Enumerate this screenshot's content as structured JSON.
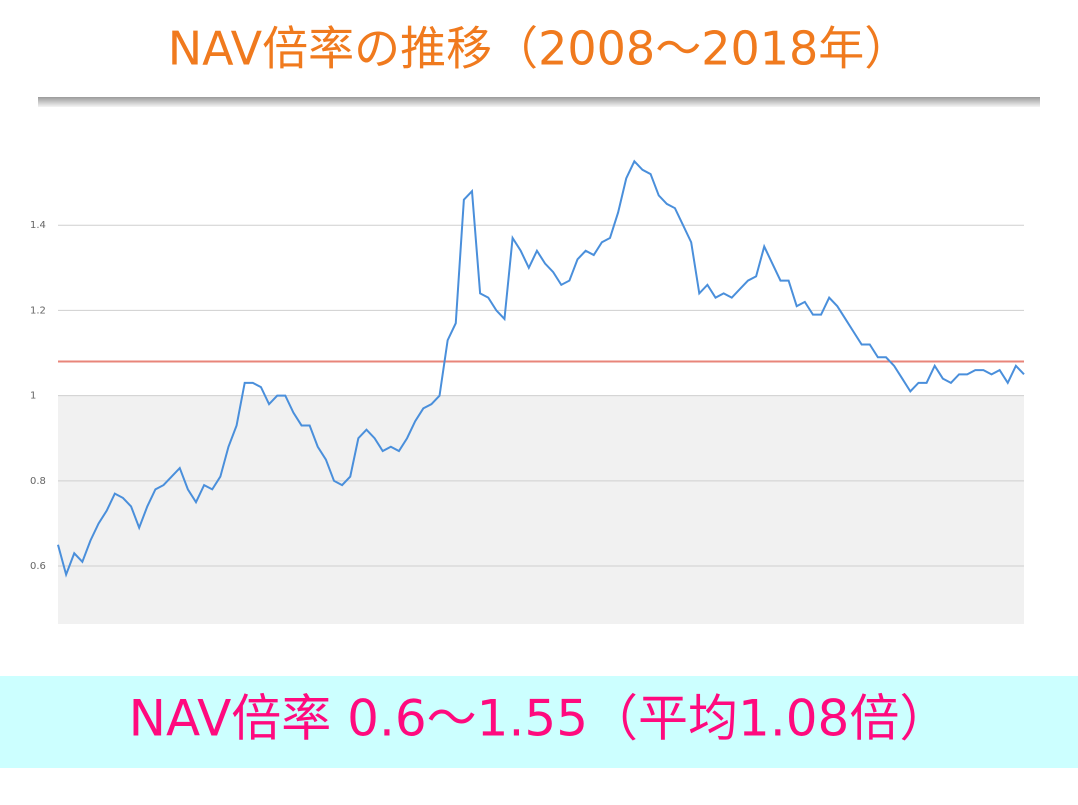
{
  "header": {
    "title": "NAV倍率の推移（2008〜2018年）"
  },
  "chart_data": {
    "type": "line",
    "series": [
      {
        "color": "#4a8fdb",
        "values": [
          0.65,
          0.58,
          0.63,
          0.61,
          0.66,
          0.7,
          0.73,
          0.77,
          0.76,
          0.74,
          0.69,
          0.74,
          0.78,
          0.79,
          0.81,
          0.83,
          0.78,
          0.75,
          0.79,
          0.78,
          0.81,
          0.88,
          0.93,
          1.03,
          1.03,
          1.02,
          0.98,
          1.0,
          1.0,
          0.96,
          0.93,
          0.93,
          0.88,
          0.85,
          0.8,
          0.79,
          0.81,
          0.9,
          0.92,
          0.9,
          0.87,
          0.88,
          0.87,
          0.9,
          0.94,
          0.97,
          0.98,
          1.0,
          1.13,
          1.17,
          1.46,
          1.48,
          1.24,
          1.23,
          1.2,
          1.18,
          1.37,
          1.34,
          1.3,
          1.34,
          1.31,
          1.29,
          1.26,
          1.27,
          1.32,
          1.34,
          1.33,
          1.36,
          1.37,
          1.43,
          1.51,
          1.55,
          1.53,
          1.52,
          1.47,
          1.45,
          1.44,
          1.4,
          1.36,
          1.24,
          1.26,
          1.23,
          1.24,
          1.23,
          1.25,
          1.27,
          1.28,
          1.35,
          1.31,
          1.27,
          1.27,
          1.21,
          1.22,
          1.19,
          1.19,
          1.23,
          1.21,
          1.18,
          1.15,
          1.12,
          1.12,
          1.09,
          1.09,
          1.07,
          1.04,
          1.01,
          1.03,
          1.03,
          1.07,
          1.04,
          1.03,
          1.05,
          1.05,
          1.06,
          1.06,
          1.05,
          1.06,
          1.03,
          1.07,
          1.05
        ]
      }
    ],
    "ylim": [
      0.464,
      1.6
    ],
    "yticks": [
      0.6,
      0.8,
      1,
      1.2,
      1.4
    ],
    "grid": true,
    "average_line": 1.08,
    "average_color": "#e8857a",
    "shade_below": 1,
    "shade_color": "#f1f1f1"
  },
  "footer": {
    "summary": "NAV倍率 0.6〜1.55（平均1.08倍）"
  }
}
